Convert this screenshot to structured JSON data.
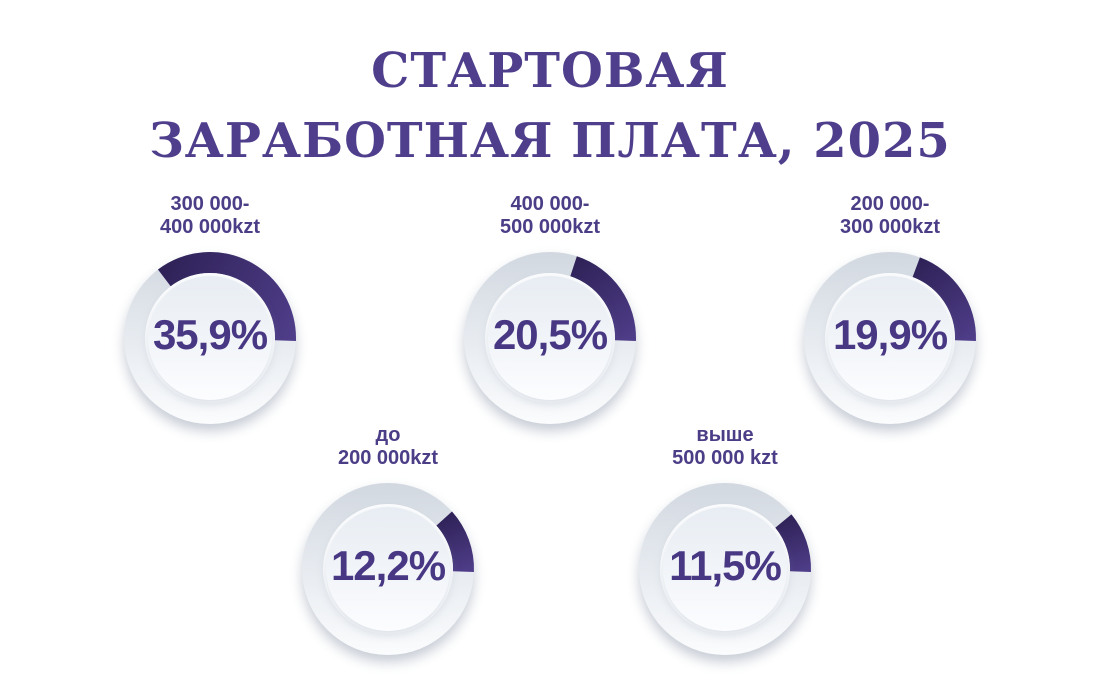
{
  "title": {
    "line1": "СТАРТОВАЯ",
    "line2": "ЗАРАБОТНАЯ ПЛАТА, 2025"
  },
  "colors": {
    "title_text": "#4e3e8c",
    "label_text": "#4c3d87",
    "value_text": "#483884",
    "background": "#ffffff"
  },
  "chart_data": {
    "type": "pie",
    "variant": "donut-gauges",
    "title": "СТАРТОВАЯ ЗАРАБОТНАЯ ПЛАТА, 2025",
    "unit": "%",
    "legend_position": "above-each-donut",
    "items": [
      {
        "label": "300 000-400 000kzt",
        "label_lines": [
          "300 000-",
          "400 000kzt"
        ],
        "value": 35.9,
        "value_label": "35,9%"
      },
      {
        "label": "400 000-500 000kzt",
        "label_lines": [
          "400 000-",
          "500 000kzt"
        ],
        "value": 20.5,
        "value_label": "20,5%"
      },
      {
        "label": "200 000-300 000kzt",
        "label_lines": [
          "200 000-",
          "300 000kzt"
        ],
        "value": 19.9,
        "value_label": "19,9%"
      },
      {
        "label": "до 200 000kzt",
        "label_lines": [
          "до",
          "200 000kzt"
        ],
        "value": 12.2,
        "value_label": "12,2%"
      },
      {
        "label": "выше 500 000 kzt",
        "label_lines": [
          "выше",
          "500 000 kzt"
        ],
        "value": 11.5,
        "value_label": "11,5%"
      }
    ],
    "style": {
      "arc_end_deg": 92,
      "arc_color_start": "#2e2156",
      "arc_color_end": "#503e8b",
      "ring_top": "#d2d8e0",
      "ring_mid": "#e9edf2",
      "ring_bottom": "#fbfcfd",
      "inner_top": "#e8edf3",
      "inner_mid": "#f1f4f8",
      "inner_bottom": "#fcfdff",
      "gap_ring": "#fdfeff"
    }
  }
}
